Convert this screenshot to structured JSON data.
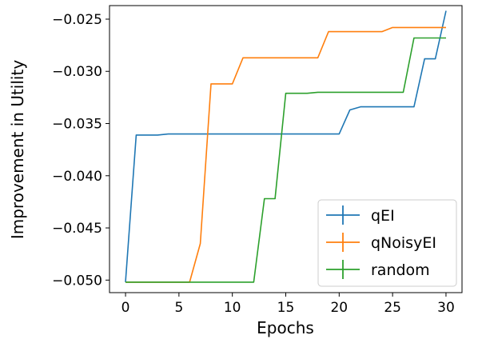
{
  "chart_data": {
    "type": "line",
    "title": "",
    "xlabel": "Epochs",
    "ylabel": "Improvement in Utility",
    "xlim": [
      -1.5,
      31.5
    ],
    "ylim": [
      -0.0512,
      -0.0237
    ],
    "xticks": [
      0,
      5,
      10,
      15,
      20,
      25,
      30
    ],
    "xtick_labels": [
      "0",
      "5",
      "10",
      "15",
      "20",
      "25",
      "30"
    ],
    "yticks": [
      -0.05,
      -0.045,
      -0.04,
      -0.035,
      -0.03,
      -0.025
    ],
    "ytick_labels": [
      "−0.050",
      "−0.045",
      "−0.040",
      "−0.035",
      "−0.030",
      "−0.025"
    ],
    "grid": false,
    "legend_position": "lower-right",
    "x": [
      0,
      1,
      2,
      3,
      4,
      5,
      6,
      7,
      8,
      9,
      10,
      11,
      12,
      13,
      14,
      15,
      16,
      17,
      18,
      19,
      20,
      21,
      22,
      23,
      24,
      25,
      26,
      27,
      28,
      29,
      30
    ],
    "series": [
      {
        "name": "qEI",
        "color": "#1f77b4",
        "values": [
          -0.0502,
          -0.0361,
          -0.0361,
          -0.0361,
          -0.036,
          -0.036,
          -0.036,
          -0.036,
          -0.036,
          -0.036,
          -0.036,
          -0.036,
          -0.036,
          -0.036,
          -0.036,
          -0.036,
          -0.036,
          -0.036,
          -0.036,
          -0.036,
          -0.036,
          -0.0337,
          -0.0334,
          -0.0334,
          -0.0334,
          -0.0334,
          -0.0334,
          -0.0334,
          -0.0288,
          -0.0288,
          -0.0242
        ]
      },
      {
        "name": "qNoisyEI",
        "color": "#ff7f0e",
        "values": [
          -0.0502,
          -0.0502,
          -0.0502,
          -0.0502,
          -0.0502,
          -0.0502,
          -0.0502,
          -0.0465,
          -0.0312,
          -0.0312,
          -0.0312,
          -0.0287,
          -0.0287,
          -0.0287,
          -0.0287,
          -0.0287,
          -0.0287,
          -0.0287,
          -0.0287,
          -0.0262,
          -0.0262,
          -0.0262,
          -0.0262,
          -0.0262,
          -0.0262,
          -0.0258,
          -0.0258,
          -0.0258,
          -0.0258,
          -0.0258,
          -0.0258
        ]
      },
      {
        "name": "random",
        "color": "#2ca02c",
        "values": [
          -0.0502,
          -0.0502,
          -0.0502,
          -0.0502,
          -0.0502,
          -0.0502,
          -0.0502,
          -0.0502,
          -0.0502,
          -0.0502,
          -0.0502,
          -0.0502,
          -0.0502,
          -0.0422,
          -0.0422,
          -0.0321,
          -0.0321,
          -0.0321,
          -0.032,
          -0.032,
          -0.032,
          -0.032,
          -0.032,
          -0.032,
          -0.032,
          -0.032,
          -0.032,
          -0.0268,
          -0.0268,
          -0.0268,
          -0.0268
        ]
      }
    ]
  }
}
